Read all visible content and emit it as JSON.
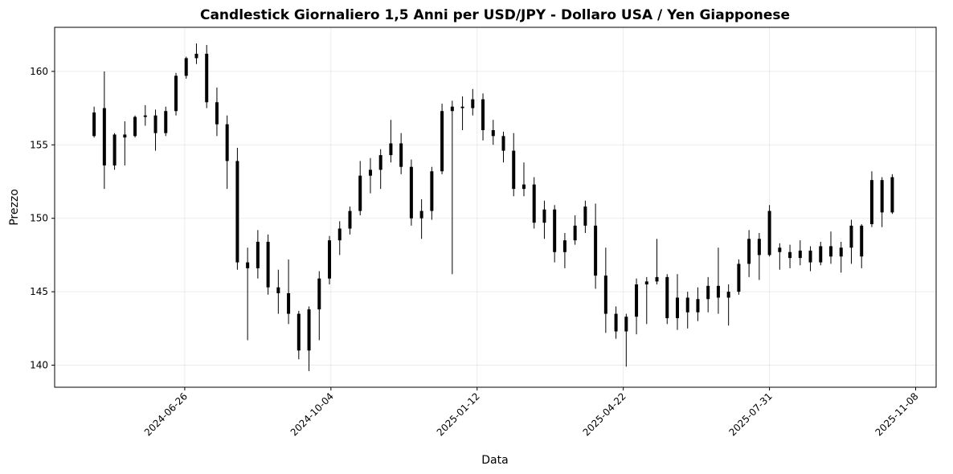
{
  "chart_data": {
    "type": "candlestick",
    "title": "Candlestick Giornaliero 1,5 Anni per USD/JPY - Dollaro USA / Yen Giapponese",
    "x_label": "Data",
    "y_label": "Prezzo",
    "color": "#000000",
    "grid": true,
    "xlim": [
      "2024-03-29",
      "2025-11-22"
    ],
    "xticks": [
      "2024-06-26",
      "2024-10-04",
      "2025-01-12",
      "2025-04-22",
      "2025-07-31",
      "2025-11-08"
    ],
    "ylim": [
      138.5,
      163.0
    ],
    "yticks": [
      140,
      145,
      150,
      155,
      160
    ],
    "x": [
      "2024-04-25",
      "2024-05-02",
      "2024-05-09",
      "2024-05-16",
      "2024-05-23",
      "2024-05-30",
      "2024-06-06",
      "2024-06-13",
      "2024-06-20",
      "2024-06-27",
      "2024-07-04",
      "2024-07-11",
      "2024-07-18",
      "2024-07-25",
      "2024-08-01",
      "2024-08-08",
      "2024-08-15",
      "2024-08-22",
      "2024-08-29",
      "2024-09-05",
      "2024-09-12",
      "2024-09-19",
      "2024-09-26",
      "2024-10-03",
      "2024-10-10",
      "2024-10-17",
      "2024-10-24",
      "2024-10-31",
      "2024-11-07",
      "2024-11-14",
      "2024-11-21",
      "2024-11-28",
      "2024-12-05",
      "2024-12-12",
      "2024-12-19",
      "2024-12-26",
      "2025-01-02",
      "2025-01-09",
      "2025-01-16",
      "2025-01-23",
      "2025-01-30",
      "2025-02-06",
      "2025-02-13",
      "2025-02-20",
      "2025-02-27",
      "2025-03-06",
      "2025-03-13",
      "2025-03-20",
      "2025-03-27",
      "2025-04-03",
      "2025-04-10",
      "2025-04-17",
      "2025-04-24",
      "2025-05-01",
      "2025-05-08",
      "2025-05-15",
      "2025-05-22",
      "2025-05-29",
      "2025-06-05",
      "2025-06-12",
      "2025-06-19",
      "2025-06-26",
      "2025-07-03",
      "2025-07-10",
      "2025-07-17",
      "2025-07-24",
      "2025-07-31",
      "2025-08-07",
      "2025-08-14",
      "2025-08-21",
      "2025-08-28",
      "2025-09-04",
      "2025-09-11",
      "2025-09-18",
      "2025-09-25",
      "2025-10-02",
      "2025-10-09",
      "2025-10-16",
      "2025-10-23"
    ],
    "open": [
      155.6,
      157.5,
      153.6,
      155.7,
      155.6,
      156.9,
      157.0,
      155.8,
      157.3,
      159.7,
      160.9,
      161.2,
      157.9,
      156.4,
      153.9,
      147.0,
      146.6,
      148.4,
      145.3,
      144.9,
      143.5,
      141.0,
      143.8,
      145.9,
      148.5,
      149.3,
      150.5,
      152.9,
      153.3,
      154.3,
      155.1,
      153.5,
      150.0,
      150.5,
      153.2,
      157.3,
      157.6,
      157.5,
      158.1,
      156.0,
      155.6,
      154.6,
      152.0,
      152.3,
      149.7,
      150.6,
      147.7,
      148.5,
      149.5,
      149.5,
      146.1,
      143.5,
      142.3,
      143.3,
      145.5,
      145.7,
      146.0,
      143.2,
      144.6,
      143.6,
      144.5,
      145.4,
      144.6,
      145.0,
      146.9,
      148.6,
      147.5,
      148.0,
      147.7,
      147.3,
      147.8,
      147.0,
      148.1,
      147.4,
      148.0,
      149.5,
      149.6,
      152.6,
      150.4
    ],
    "high": [
      157.6,
      160.0,
      155.8,
      156.6,
      157.0,
      157.7,
      157.4,
      157.6,
      159.9,
      161.0,
      161.9,
      161.8,
      158.9,
      157.0,
      154.8,
      148.0,
      149.2,
      148.9,
      146.5,
      147.2,
      143.7,
      144.0,
      146.4,
      148.8,
      149.8,
      150.8,
      153.9,
      154.1,
      154.7,
      156.7,
      155.8,
      154.0,
      151.3,
      153.5,
      157.8,
      158.0,
      158.3,
      158.8,
      158.5,
      156.7,
      155.9,
      155.8,
      153.8,
      152.8,
      151.2,
      150.9,
      149.0,
      150.2,
      151.2,
      151.0,
      148.0,
      144.0,
      143.5,
      145.9,
      146.0,
      148.6,
      146.2,
      146.2,
      145.0,
      145.3,
      146.0,
      148.0,
      145.5,
      147.2,
      149.2,
      149.0,
      150.9,
      148.3,
      148.2,
      148.5,
      148.1,
      148.4,
      149.1,
      148.4,
      149.9,
      149.6,
      153.2,
      152.8,
      153.0
    ],
    "low": [
      155.5,
      152.0,
      153.3,
      153.6,
      155.5,
      156.3,
      154.6,
      155.6,
      157.0,
      159.5,
      160.5,
      157.5,
      155.6,
      152.0,
      146.5,
      141.7,
      145.9,
      144.8,
      143.5,
      142.8,
      140.4,
      139.6,
      141.7,
      145.5,
      147.5,
      148.9,
      150.2,
      151.7,
      152.0,
      153.8,
      153.0,
      149.5,
      148.6,
      149.9,
      153.0,
      146.2,
      156.0,
      157.0,
      155.3,
      155.0,
      153.8,
      151.5,
      151.5,
      149.3,
      148.6,
      147.0,
      146.6,
      148.2,
      149.0,
      145.2,
      142.2,
      141.8,
      139.9,
      142.1,
      142.8,
      145.5,
      142.8,
      142.4,
      142.5,
      143.0,
      143.6,
      143.5,
      142.7,
      144.8,
      146.0,
      145.8,
      147.4,
      146.5,
      146.6,
      146.8,
      146.4,
      146.8,
      146.9,
      146.3,
      146.9,
      146.6,
      149.4,
      149.4,
      150.3
    ],
    "close": [
      157.2,
      153.6,
      155.7,
      155.5,
      156.9,
      157.0,
      155.8,
      157.3,
      159.7,
      160.9,
      161.2,
      157.9,
      156.4,
      153.9,
      147.0,
      146.6,
      148.4,
      145.3,
      144.9,
      143.5,
      141.0,
      143.8,
      145.9,
      148.5,
      149.3,
      150.5,
      152.9,
      153.3,
      154.3,
      155.1,
      153.5,
      150.0,
      150.5,
      153.2,
      157.3,
      157.6,
      157.5,
      158.1,
      156.0,
      155.6,
      154.6,
      152.0,
      152.3,
      149.7,
      150.6,
      147.7,
      148.5,
      149.5,
      150.8,
      146.1,
      143.5,
      142.3,
      143.3,
      145.5,
      145.7,
      146.0,
      143.2,
      144.6,
      143.6,
      144.5,
      145.4,
      144.6,
      145.0,
      146.9,
      148.6,
      147.5,
      150.5,
      147.7,
      147.3,
      147.8,
      147.0,
      148.1,
      147.4,
      148.0,
      149.5,
      147.4,
      152.6,
      150.4,
      152.8
    ]
  }
}
